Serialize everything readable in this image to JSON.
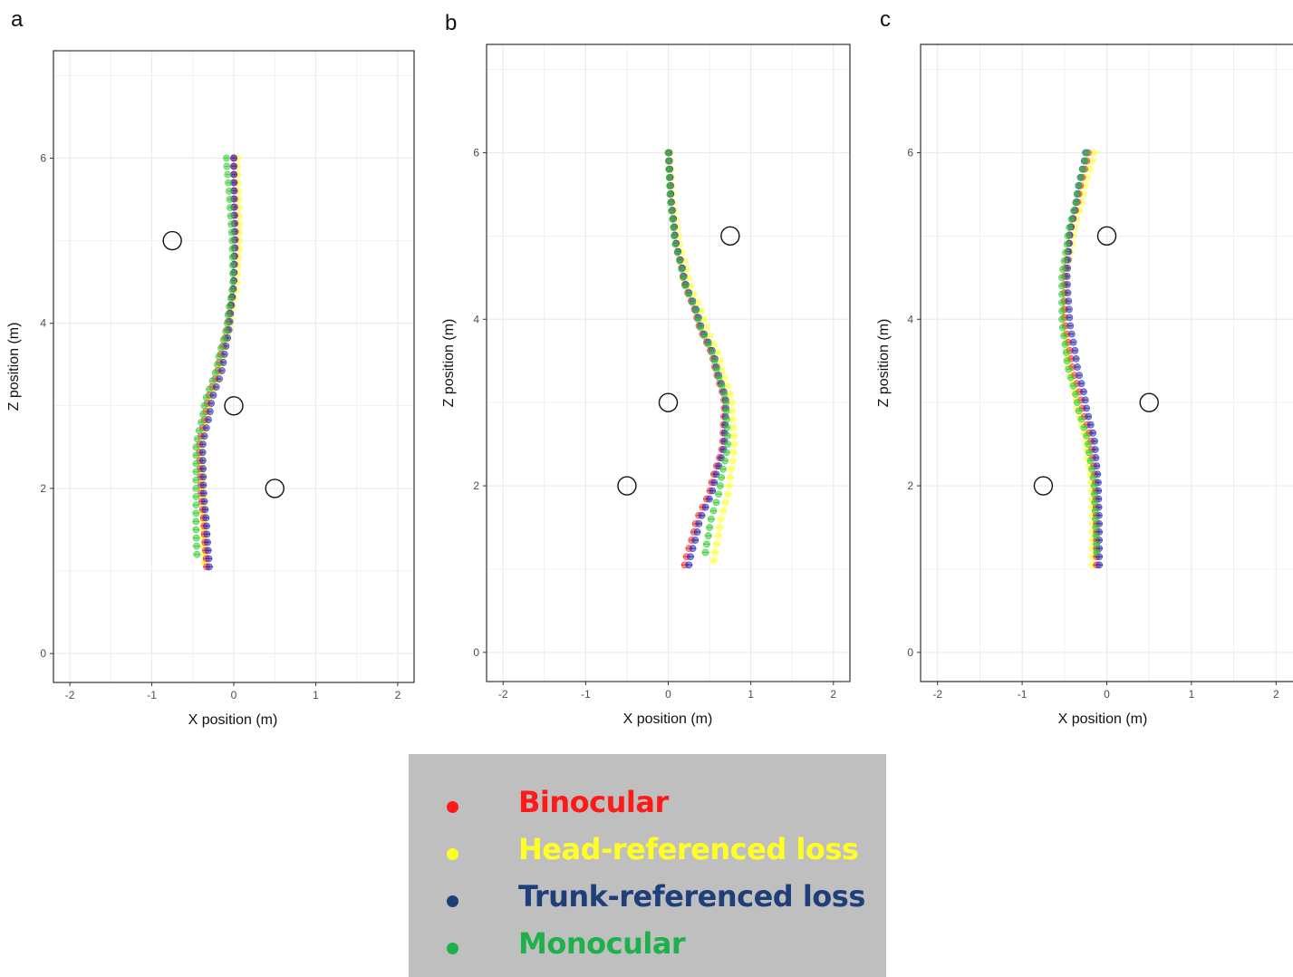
{
  "panels": [
    {
      "letter": "a",
      "chart_data": {
        "type": "scatter",
        "xlabel": "X position (m)",
        "ylabel": "Z position (m)",
        "xlim": [
          -2.2,
          2.2
        ],
        "ylim": [
          -0.35,
          7.3
        ],
        "xticks": [
          -2,
          -1,
          0,
          1,
          2
        ],
        "yticks": [
          0,
          2,
          4,
          6
        ],
        "grid": true,
        "obstacles": [
          {
            "x": -0.75,
            "z": 5
          },
          {
            "x": 0,
            "z": 3
          },
          {
            "x": 0.5,
            "z": 2
          }
        ],
        "series": [
          {
            "name": "Binocular",
            "z": [
              1.05,
              1.5,
              2,
              2.5,
              3,
              3.5,
              4,
              4.5,
              5,
              5.5,
              6
            ],
            "x": [
              -0.33,
              -0.36,
              -0.4,
              -0.42,
              -0.33,
              -0.18,
              -0.07,
              0,
              0.02,
              0.01,
              0
            ]
          },
          {
            "name": "Head-referenced loss",
            "z": [
              1.1,
              1.5,
              2,
              2.5,
              3,
              3.5,
              4,
              4.5,
              5,
              5.5,
              6
            ],
            "x": [
              -0.36,
              -0.37,
              -0.38,
              -0.4,
              -0.3,
              -0.15,
              -0.04,
              0.04,
              0.07,
              0.06,
              0.04
            ]
          },
          {
            "name": "Trunk-referenced loss",
            "z": [
              1.05,
              1.5,
              2,
              2.5,
              3,
              3.5,
              4,
              4.5,
              5,
              5.5,
              6
            ],
            "x": [
              -0.3,
              -0.33,
              -0.37,
              -0.38,
              -0.28,
              -0.13,
              -0.05,
              0,
              0.01,
              0,
              0
            ]
          },
          {
            "name": "Monocular",
            "z": [
              1.2,
              1.5,
              2,
              2.5,
              3,
              3.5,
              4,
              4.5,
              5,
              5.5,
              6
            ],
            "x": [
              -0.45,
              -0.46,
              -0.46,
              -0.46,
              -0.36,
              -0.2,
              -0.08,
              -0.01,
              -0.02,
              -0.05,
              -0.09
            ]
          }
        ]
      }
    },
    {
      "letter": "b",
      "chart_data": {
        "type": "scatter",
        "xlabel": "X position (m)",
        "ylabel": "Z position (m)",
        "xlim": [
          -2.2,
          2.2
        ],
        "ylim": [
          -0.35,
          7.3
        ],
        "xticks": [
          -2,
          -1,
          0,
          1,
          2
        ],
        "yticks": [
          0,
          2,
          4,
          6
        ],
        "grid": true,
        "obstacles": [
          {
            "x": 0.75,
            "z": 5
          },
          {
            "x": 0,
            "z": 3
          },
          {
            "x": -0.5,
            "z": 2
          }
        ],
        "series": [
          {
            "name": "Binocular",
            "z": [
              1.05,
              1.5,
              2,
              2.5,
              3,
              3.5,
              4,
              4.5,
              5,
              5.5,
              6
            ],
            "x": [
              0.2,
              0.32,
              0.52,
              0.66,
              0.68,
              0.55,
              0.35,
              0.18,
              0.08,
              0.03,
              0
            ]
          },
          {
            "name": "Head-referenced loss",
            "z": [
              1.1,
              1.5,
              2,
              2.5,
              3,
              3.5,
              4,
              4.5,
              5,
              5.5,
              6
            ],
            "x": [
              0.55,
              0.62,
              0.74,
              0.8,
              0.77,
              0.63,
              0.43,
              0.24,
              0.12,
              0.05,
              0.02
            ]
          },
          {
            "name": "Trunk-referenced loss",
            "z": [
              1.05,
              1.5,
              2,
              2.5,
              3,
              3.5,
              4,
              4.5,
              5,
              5.5,
              6
            ],
            "x": [
              0.25,
              0.36,
              0.55,
              0.68,
              0.7,
              0.57,
              0.37,
              0.19,
              0.08,
              0.03,
              0.01
            ]
          },
          {
            "name": "Monocular",
            "z": [
              1.2,
              1.5,
              2,
              2.5,
              3,
              3.5,
              4,
              4.5,
              5,
              5.5,
              6
            ],
            "x": [
              0.45,
              0.5,
              0.63,
              0.72,
              0.7,
              0.56,
              0.36,
              0.18,
              0.07,
              0.02,
              0
            ]
          }
        ]
      }
    },
    {
      "letter": "c",
      "chart_data": {
        "type": "scatter",
        "xlabel": "X position (m)",
        "ylabel": "Z position (m)",
        "xlim": [
          -2.2,
          2.2
        ],
        "ylim": [
          -0.35,
          7.3
        ],
        "xticks": [
          -2,
          -1,
          0,
          1,
          2
        ],
        "yticks": [
          0,
          2,
          4,
          6
        ],
        "grid": true,
        "obstacles": [
          {
            "x": 0,
            "z": 5
          },
          {
            "x": 0.5,
            "z": 3
          },
          {
            "x": -0.75,
            "z": 2
          }
        ],
        "series": [
          {
            "name": "Binocular",
            "z": [
              1.05,
              1.5,
              2,
              2.5,
              3,
              3.5,
              4,
              4.5,
              5,
              5.5,
              6
            ],
            "x": [
              -0.12,
              -0.12,
              -0.13,
              -0.18,
              -0.3,
              -0.42,
              -0.5,
              -0.5,
              -0.44,
              -0.33,
              -0.22
            ]
          },
          {
            "name": "Head-referenced loss",
            "z": [
              1.05,
              1.5,
              2,
              2.5,
              3,
              3.5,
              4,
              4.5,
              5,
              5.5,
              6
            ],
            "x": [
              -0.17,
              -0.17,
              -0.18,
              -0.24,
              -0.36,
              -0.46,
              -0.5,
              -0.48,
              -0.4,
              -0.28,
              -0.15
            ]
          },
          {
            "name": "Trunk-referenced loss",
            "z": [
              1.05,
              1.5,
              2,
              2.5,
              3,
              3.5,
              4,
              4.5,
              5,
              5.5,
              6
            ],
            "x": [
              -0.09,
              -0.09,
              -0.1,
              -0.14,
              -0.25,
              -0.36,
              -0.44,
              -0.47,
              -0.44,
              -0.35,
              -0.25
            ]
          },
          {
            "name": "Monocular",
            "z": [
              1.2,
              1.5,
              2,
              2.5,
              3,
              3.5,
              4,
              4.5,
              5,
              5.5,
              6
            ],
            "x": [
              -0.12,
              -0.13,
              -0.15,
              -0.22,
              -0.35,
              -0.47,
              -0.53,
              -0.53,
              -0.46,
              -0.35,
              -0.24
            ]
          }
        ]
      }
    }
  ],
  "legend": [
    {
      "label": "Binocular",
      "color": "#ff1a1a"
    },
    {
      "label": "Head-referenced loss",
      "color": "#ffff26"
    },
    {
      "label": "Trunk-referenced loss",
      "color": "#1f3f7a"
    },
    {
      "label": "Monocular",
      "color": "#1eb14b"
    }
  ],
  "colors": {
    "Binocular": "#ff2a2a",
    "Head-referenced loss": "#ffff33",
    "Trunk-referenced loss": "#2b2bb8",
    "Monocular": "#33cc33",
    "legend_background": "#bfbfbf",
    "grid": "#ebebeb",
    "axis_text": "#4d4d4d"
  }
}
